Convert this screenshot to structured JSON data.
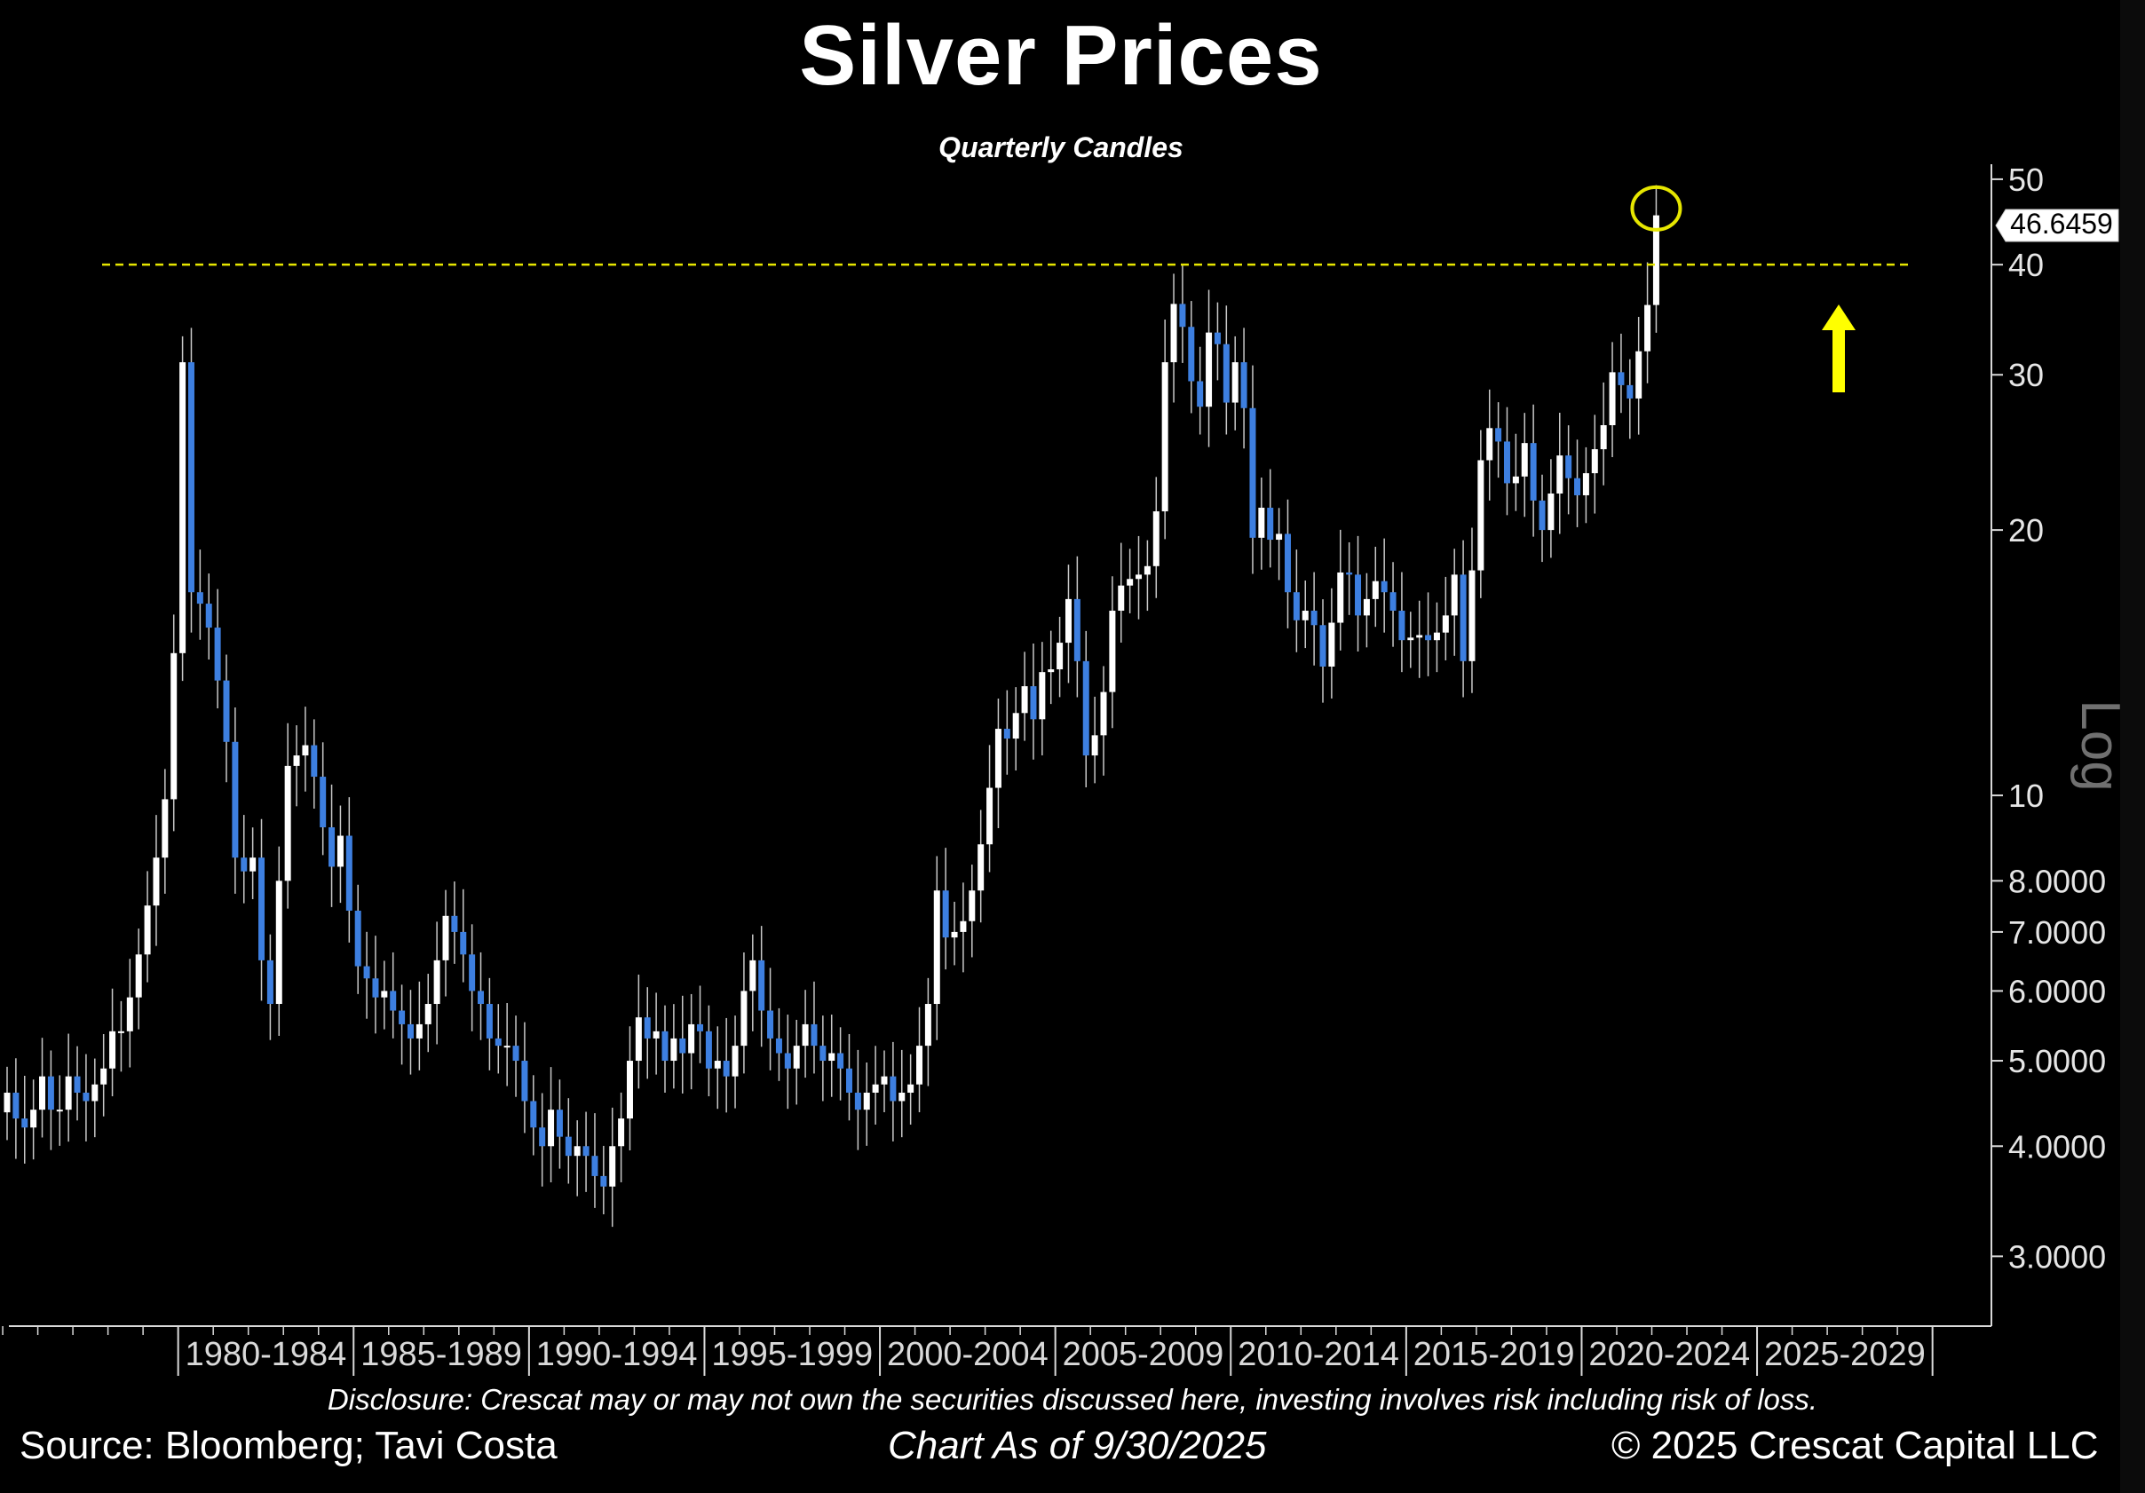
{
  "title": "Silver Prices",
  "subtitle": "Quarterly Candles",
  "footer": {
    "disclosure": "Disclosure: Crescat may or may not own the securities discussed here, investing involves risk including risk of loss.",
    "source": "Source: Bloomberg; Tavi Costa",
    "as_of": "Chart As of 9/30/2025",
    "copyright": "© 2025 Crescat Capital LLC"
  },
  "colors": {
    "up": "#ffffff",
    "down": "#3d7fe0",
    "resistance": "#e6e600",
    "arrow": "#ffff00",
    "axis": "#d9d9d9"
  },
  "chart_data": {
    "type": "candlestick",
    "scale": "log",
    "axis_title": "Log",
    "ylim": [
      2.5,
      52
    ],
    "y_ticks": [
      {
        "value": 50,
        "label": "50"
      },
      {
        "value": 40,
        "label": "40"
      },
      {
        "value": 30,
        "label": "30"
      },
      {
        "value": 20,
        "label": "20"
      },
      {
        "value": 10,
        "label": "10"
      },
      {
        "value": 8,
        "label": "8.0000"
      },
      {
        "value": 7,
        "label": "7.0000"
      },
      {
        "value": 6,
        "label": "6.0000"
      },
      {
        "value": 5,
        "label": "5.0000"
      },
      {
        "value": 4,
        "label": "4.0000"
      },
      {
        "value": 3,
        "label": "3.0000"
      }
    ],
    "x_periods": [
      "1980-1984",
      "1985-1989",
      "1990-1994",
      "1995-1999",
      "2000-2004",
      "2005-2009",
      "2010-2014",
      "2015-2019",
      "2020-2024",
      "2025-2029"
    ],
    "start": "1975-Q1",
    "end": "2029-Q4",
    "resistance_level": 40,
    "last_price_label": "46.6459",
    "last_price": 46.6459,
    "closes": [
      4.6,
      4.3,
      4.2,
      4.4,
      4.8,
      4.4,
      4.4,
      4.8,
      4.6,
      4.5,
      4.7,
      4.9,
      5.4,
      5.4,
      5.9,
      6.6,
      7.5,
      8.5,
      9.9,
      14.5,
      31,
      17,
      16.5,
      15.5,
      13.5,
      11.5,
      8.5,
      8.2,
      8.5,
      6.5,
      5.8,
      8.0,
      10.8,
      11.1,
      11.4,
      10.5,
      9.2,
      8.3,
      9.0,
      7.4,
      6.4,
      6.2,
      5.9,
      6.0,
      5.7,
      5.5,
      5.3,
      5.5,
      5.8,
      6.5,
      7.3,
      7.0,
      6.6,
      6.0,
      5.8,
      5.3,
      5.2,
      5.2,
      5.0,
      4.5,
      4.2,
      4.0,
      4.4,
      4.1,
      3.9,
      4.0,
      3.9,
      3.7,
      3.6,
      4.0,
      4.3,
      5.0,
      5.6,
      5.3,
      5.4,
      5.0,
      5.3,
      5.1,
      5.5,
      5.4,
      4.9,
      5.0,
      4.8,
      5.2,
      6.0,
      6.5,
      5.7,
      5.3,
      5.1,
      4.9,
      5.2,
      5.5,
      5.2,
      5.0,
      5.1,
      4.9,
      4.6,
      4.4,
      4.6,
      4.7,
      4.8,
      4.5,
      4.6,
      4.7,
      5.2,
      5.8,
      7.8,
      6.9,
      7.0,
      7.2,
      7.8,
      8.8,
      10.2,
      11.9,
      11.6,
      12.4,
      13.3,
      12.2,
      13.8,
      13.9,
      14.9,
      16.7,
      14.2,
      11.1,
      11.7,
      13.1,
      16.2,
      17.3,
      17.6,
      17.8,
      18.2,
      21.0,
      31.0,
      36.1,
      34.0,
      29.5,
      27.6,
      33.5,
      32.5,
      27.9,
      31.0,
      27.5,
      19.6,
      21.2,
      19.5,
      19.8,
      17.0,
      15.8,
      16.2,
      15.6,
      14.0,
      15.7,
      17.9,
      17.8,
      16.0,
      16.7,
      17.5,
      17.0,
      16.2,
      15.0,
      15.1,
      15.2,
      15.0,
      15.3,
      16.0,
      17.8,
      14.2,
      18.0,
      24.0,
      26.1,
      25.2,
      22.6,
      23.0,
      25.1,
      21.6,
      20.0,
      22.0,
      24.3,
      22.9,
      21.9,
      23.2,
      24.7,
      26.3,
      30.2,
      29.2,
      28.2,
      31.9,
      36.0,
      45.5
    ],
    "markers": {
      "y_ticks_drawn": true,
      "circle_at_last": true,
      "up_arrow": true
    }
  }
}
